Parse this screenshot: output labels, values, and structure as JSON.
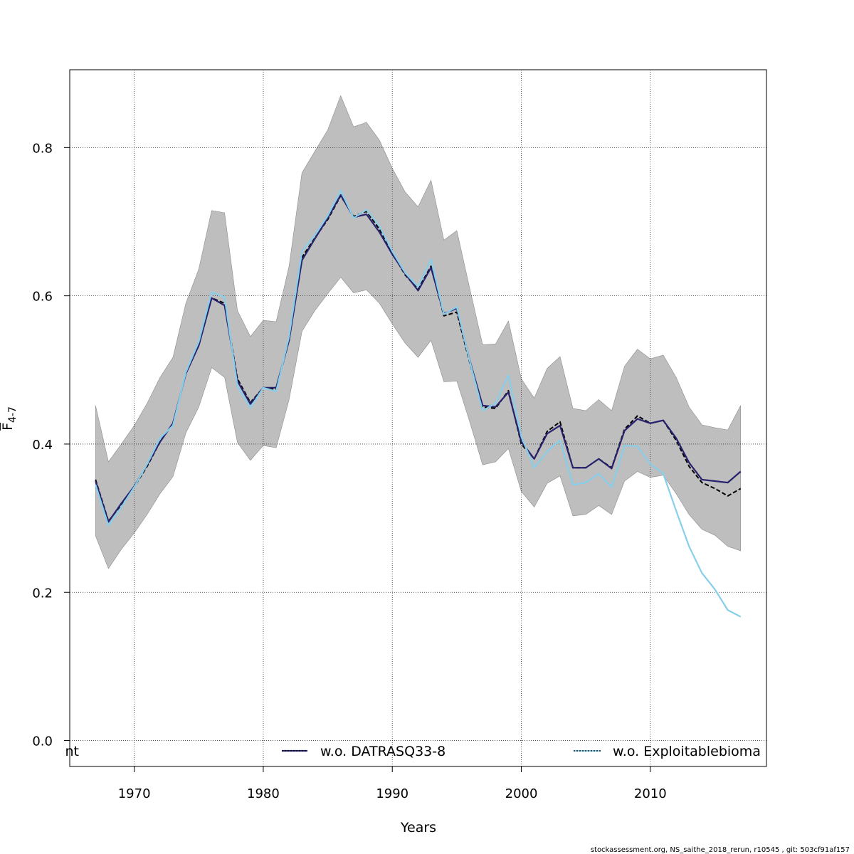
{
  "chart_data": {
    "type": "line",
    "xlabel": "Years",
    "ylabel_main": "F",
    "ylabel_sub": "4-7",
    "xlim": [
      1965,
      2019
    ],
    "ylim": [
      -0.035,
      0.905
    ],
    "xticks": [
      1970,
      1980,
      1990,
      2000,
      2010
    ],
    "yticks": [
      0.0,
      0.2,
      0.4,
      0.6,
      0.8
    ],
    "grid": true,
    "x": [
      1967,
      1968,
      1969,
      1970,
      1971,
      1972,
      1973,
      1974,
      1975,
      1976,
      1977,
      1978,
      1979,
      1980,
      1981,
      1982,
      1983,
      1984,
      1985,
      1986,
      1987,
      1988,
      1989,
      1990,
      1991,
      1992,
      1993,
      1994,
      1995,
      1996,
      1997,
      1998,
      1999,
      2000,
      2001,
      2002,
      2003,
      2004,
      2005,
      2006,
      2007,
      2008,
      2009,
      2010,
      2011,
      2012,
      2013,
      2014,
      2015,
      2016,
      2017
    ],
    "band": {
      "color": "#bebebe",
      "lower": [
        0.276,
        0.232,
        0.258,
        0.28,
        0.305,
        0.333,
        0.356,
        0.415,
        0.45,
        0.503,
        0.49,
        0.402,
        0.378,
        0.398,
        0.395,
        0.46,
        0.552,
        0.58,
        0.603,
        0.625,
        0.604,
        0.608,
        0.59,
        0.562,
        0.536,
        0.517,
        0.54,
        0.484,
        0.485,
        0.43,
        0.372,
        0.376,
        0.394,
        0.336,
        0.315,
        0.347,
        0.357,
        0.303,
        0.305,
        0.317,
        0.305,
        0.35,
        0.363,
        0.355,
        0.358,
        0.333,
        0.305,
        0.285,
        0.277,
        0.262,
        0.256
      ],
      "upper": [
        0.452,
        0.376,
        0.4,
        0.425,
        0.455,
        0.49,
        0.517,
        0.59,
        0.636,
        0.715,
        0.712,
        0.58,
        0.545,
        0.567,
        0.565,
        0.64,
        0.766,
        0.795,
        0.824,
        0.87,
        0.828,
        0.834,
        0.81,
        0.772,
        0.74,
        0.72,
        0.756,
        0.675,
        0.688,
        0.61,
        0.534,
        0.535,
        0.566,
        0.488,
        0.462,
        0.502,
        0.518,
        0.448,
        0.445,
        0.46,
        0.445,
        0.505,
        0.528,
        0.515,
        0.52,
        0.49,
        0.45,
        0.426,
        0.422,
        0.419,
        0.452
      ]
    },
    "series": [
      {
        "color": "#000000",
        "dash": "6,3",
        "values": [
          0.352,
          0.296,
          0.318,
          0.342,
          0.37,
          0.403,
          0.428,
          0.495,
          0.533,
          0.597,
          0.59,
          0.488,
          0.456,
          0.476,
          0.474,
          0.54,
          0.652,
          0.678,
          0.703,
          0.735,
          0.707,
          0.714,
          0.69,
          0.658,
          0.628,
          0.609,
          0.64,
          0.573,
          0.578,
          0.51,
          0.45,
          0.448,
          0.472,
          0.4,
          0.38,
          0.417,
          0.43,
          0.368,
          0.368,
          0.38,
          0.368,
          0.42,
          0.438,
          0.428,
          0.432,
          0.405,
          0.37,
          0.348,
          0.34,
          0.33,
          0.34
        ]
      },
      {
        "name": "w.o. DATRASQ33-8",
        "color": "#27226e",
        "dash": "",
        "values": [
          0.35,
          0.295,
          0.32,
          0.343,
          0.372,
          0.403,
          0.428,
          0.495,
          0.533,
          0.597,
          0.587,
          0.485,
          0.454,
          0.476,
          0.476,
          0.54,
          0.648,
          0.677,
          0.705,
          0.736,
          0.706,
          0.71,
          0.686,
          0.656,
          0.63,
          0.607,
          0.638,
          0.576,
          0.583,
          0.513,
          0.452,
          0.45,
          0.47,
          0.403,
          0.38,
          0.414,
          0.425,
          0.368,
          0.368,
          0.38,
          0.367,
          0.418,
          0.434,
          0.428,
          0.432,
          0.408,
          0.375,
          0.352,
          0.35,
          0.348,
          0.363
        ]
      },
      {
        "name": "w.o. Exploitablebioma",
        "color": "#87ceeb",
        "dash": "",
        "values": [
          0.345,
          0.29,
          0.315,
          0.342,
          0.373,
          0.408,
          0.425,
          0.497,
          0.538,
          0.605,
          0.598,
          0.478,
          0.449,
          0.476,
          0.471,
          0.545,
          0.66,
          0.682,
          0.708,
          0.742,
          0.705,
          0.716,
          0.694,
          0.66,
          0.631,
          0.612,
          0.649,
          0.575,
          0.585,
          0.512,
          0.445,
          0.455,
          0.493,
          0.41,
          0.368,
          0.39,
          0.405,
          0.345,
          0.348,
          0.36,
          0.342,
          0.398,
          0.397,
          0.373,
          0.36,
          0.31,
          0.262,
          0.226,
          0.204,
          0.176,
          0.167
        ]
      }
    ],
    "legend": {
      "position": "bottom",
      "entries": [
        {
          "label": "nt",
          "color": "#000000",
          "dash": "",
          "show_line": false
        },
        {
          "label": "w.o. DATRASQ33-8",
          "color": "#27226e",
          "dash": "",
          "overlay": "#000000",
          "show_line": true
        },
        {
          "label": "w.o. Exploitablebioma",
          "color": "#87ceeb",
          "dash": "",
          "overlay": "#000000",
          "show_line": true
        }
      ]
    }
  },
  "footer": "stockassessment.org, NS_saithe_2018_rerun, r10545 , git: 503cf91af157"
}
